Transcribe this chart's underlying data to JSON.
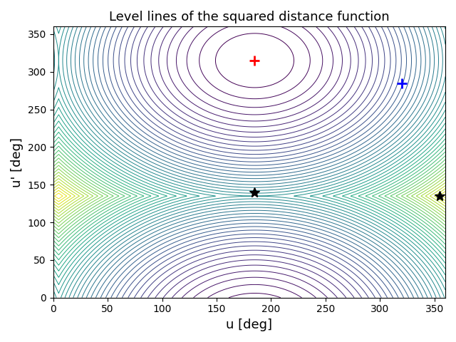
{
  "title": "Level lines of the squared distance function",
  "xlabel": "u [deg]",
  "ylabel": "u' [deg]",
  "xlim": [
    0,
    360
  ],
  "ylim": [
    0,
    360
  ],
  "xticks": [
    0,
    50,
    100,
    150,
    200,
    250,
    300,
    350
  ],
  "yticks": [
    0,
    50,
    100,
    150,
    200,
    250,
    300,
    350
  ],
  "red_plus": [
    185,
    315
  ],
  "blue_plus": [
    320,
    285
  ],
  "black_star1": [
    185,
    140
  ],
  "black_star2": [
    355,
    135
  ],
  "n_levels": 50,
  "colormap": "viridis",
  "grid_points": 500,
  "u0": 185,
  "v0": 315,
  "period": 360
}
